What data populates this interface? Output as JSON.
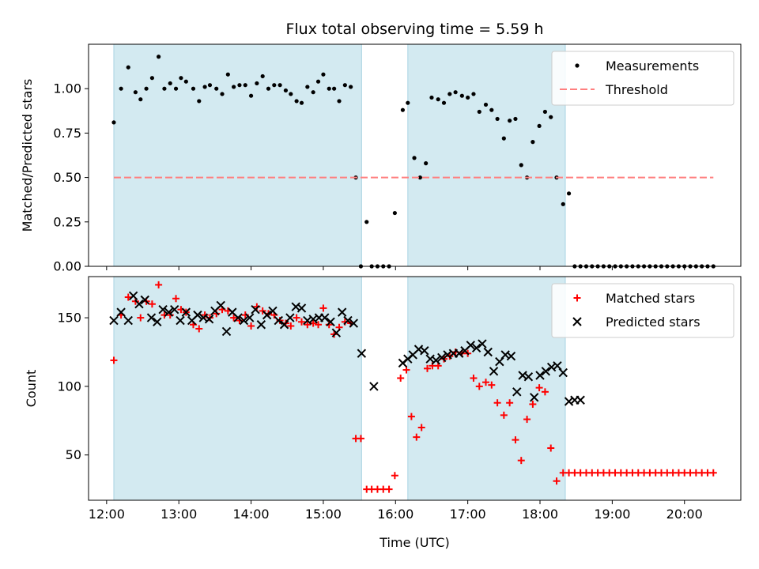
{
  "chart_data": [
    {
      "type": "scatter",
      "title": "Flux total observing time = 5.59 h",
      "xlabel": "",
      "ylabel": "Matched/Predicted stars",
      "x_unit": "hours (UTC)",
      "xlim": [
        11.75,
        20.78
      ],
      "ylim": [
        0,
        1.25
      ],
      "yticks": [
        0.0,
        0.25,
        0.5,
        0.75,
        1.0
      ],
      "ytick_labels": [
        "0.00",
        "0.25",
        "0.50",
        "0.75",
        "1.00"
      ],
      "shaded_intervals": [
        [
          12.1,
          15.53
        ],
        [
          16.17,
          18.35
        ]
      ],
      "shade_color": "#d3eaf1",
      "legend_position": "upper right",
      "series": [
        {
          "name": "Measurements",
          "marker": "dot",
          "color": "#000000",
          "x": [
            12.1,
            12.2,
            12.3,
            12.4,
            12.47,
            12.55,
            12.63,
            12.72,
            12.8,
            12.88,
            12.96,
            13.03,
            13.1,
            13.2,
            13.28,
            13.36,
            13.43,
            13.52,
            13.6,
            13.68,
            13.76,
            13.84,
            13.92,
            14.0,
            14.08,
            14.16,
            14.24,
            14.32,
            14.4,
            14.48,
            14.55,
            14.63,
            14.7,
            14.78,
            14.86,
            14.93,
            15.0,
            15.08,
            15.15,
            15.22,
            15.3,
            15.38,
            15.45,
            15.52,
            15.6,
            15.67,
            15.75,
            15.83,
            15.91,
            15.99,
            16.1,
            16.17,
            16.26,
            16.34,
            16.42,
            16.5,
            16.59,
            16.67,
            16.75,
            16.83,
            16.92,
            17.0,
            17.08,
            17.16,
            17.25,
            17.33,
            17.41,
            17.5,
            17.58,
            17.66,
            17.74,
            17.82,
            17.9,
            17.99,
            18.07,
            18.15,
            18.23,
            18.32,
            18.4,
            18.48,
            18.56,
            18.64,
            18.72,
            18.8,
            18.88,
            18.96,
            19.04,
            19.12,
            19.2,
            19.28,
            19.36,
            19.44,
            19.52,
            19.6,
            19.68,
            19.76,
            19.84,
            19.92,
            20.0,
            20.08,
            20.16,
            20.24,
            20.32,
            20.4
          ],
          "y": [
            0.81,
            1.0,
            1.12,
            0.98,
            0.94,
            1.0,
            1.06,
            1.18,
            1.0,
            1.03,
            1.0,
            1.06,
            1.04,
            1.0,
            0.93,
            1.01,
            1.02,
            1.0,
            0.97,
            1.08,
            1.01,
            1.02,
            1.02,
            0.96,
            1.03,
            1.07,
            1.0,
            1.02,
            1.02,
            0.99,
            0.97,
            0.93,
            0.92,
            1.01,
            0.98,
            1.04,
            1.08,
            1.0,
            1.0,
            0.93,
            1.02,
            1.01,
            0.5,
            0.0,
            0.25,
            0.0,
            0.0,
            0.0,
            0.0,
            0.3,
            0.88,
            0.92,
            0.61,
            0.5,
            0.58,
            0.95,
            0.94,
            0.92,
            0.97,
            0.98,
            0.96,
            0.95,
            0.97,
            0.87,
            0.91,
            0.88,
            0.83,
            0.72,
            0.82,
            0.83,
            0.57,
            0.5,
            0.7,
            0.79,
            0.87,
            0.84,
            0.5,
            0.35,
            0.41,
            0.0,
            0.0,
            0.0,
            0.0,
            0.0,
            0.0,
            0.0,
            0.0,
            0.0,
            0.0,
            0.0,
            0.0,
            0.0,
            0.0,
            0.0,
            0.0,
            0.0,
            0.0,
            0.0,
            0.0,
            0.0,
            0.0,
            0.0,
            0.0,
            0.0
          ]
        },
        {
          "name": "Threshold",
          "type": "line",
          "style": "dashed",
          "color": "#ff7f7f",
          "x": [
            12.1,
            20.4
          ],
          "y": [
            0.5,
            0.5
          ]
        }
      ]
    },
    {
      "type": "scatter",
      "title": "",
      "xlabel": "Time (UTC)",
      "ylabel": "Count",
      "x_unit": "hours (UTC)",
      "xlim": [
        11.75,
        20.78
      ],
      "ylim": [
        17,
        180
      ],
      "xticks": [
        12,
        13,
        14,
        15,
        16,
        17,
        18,
        19,
        20
      ],
      "xtick_labels": [
        "12:00",
        "13:00",
        "14:00",
        "15:00",
        "16:00",
        "17:00",
        "18:00",
        "19:00",
        "20:00"
      ],
      "yticks": [
        50,
        100,
        150
      ],
      "ytick_labels": [
        "50",
        "100",
        "150"
      ],
      "shaded_intervals": [
        [
          12.1,
          15.53
        ],
        [
          16.17,
          18.35
        ]
      ],
      "shade_color": "#d3eaf1",
      "legend_position": "upper right",
      "series": [
        {
          "name": "Matched stars",
          "marker": "plus",
          "color": "#ff0000",
          "x": [
            12.1,
            12.2,
            12.3,
            12.4,
            12.47,
            12.55,
            12.63,
            12.72,
            12.8,
            12.88,
            12.96,
            13.03,
            13.1,
            13.2,
            13.28,
            13.36,
            13.43,
            13.52,
            13.6,
            13.68,
            13.76,
            13.84,
            13.92,
            14.0,
            14.08,
            14.16,
            14.24,
            14.32,
            14.4,
            14.48,
            14.55,
            14.63,
            14.7,
            14.78,
            14.86,
            14.93,
            15.0,
            15.08,
            15.15,
            15.22,
            15.3,
            15.38,
            15.45,
            15.52,
            15.6,
            15.67,
            15.75,
            15.83,
            15.91,
            15.99,
            16.07,
            16.15,
            16.22,
            16.29,
            16.36,
            16.44,
            16.51,
            16.59,
            16.67,
            16.75,
            16.83,
            16.92,
            17.0,
            17.08,
            17.16,
            17.25,
            17.33,
            17.41,
            17.5,
            17.58,
            17.66,
            17.74,
            17.82,
            17.9,
            17.99,
            18.07,
            18.15,
            18.23,
            18.32,
            18.4,
            18.48,
            18.56,
            18.64,
            18.72,
            18.8,
            18.88,
            18.96,
            19.04,
            19.12,
            19.2,
            19.28,
            19.36,
            19.44,
            19.52,
            19.6,
            19.68,
            19.76,
            19.84,
            19.92,
            20.0,
            20.08,
            20.16,
            20.24,
            20.32,
            20.4
          ],
          "y": [
            119,
            152,
            165,
            162,
            150,
            162,
            160,
            174,
            152,
            152,
            164,
            156,
            154,
            145,
            142,
            152,
            150,
            153,
            156,
            155,
            150,
            148,
            152,
            144,
            158,
            155,
            153,
            152,
            148,
            146,
            144,
            150,
            147,
            145,
            146,
            145,
            157,
            145,
            138,
            143,
            147,
            146,
            62,
            62,
            25,
            25,
            25,
            25,
            25,
            35,
            106,
            112,
            78,
            63,
            70,
            113,
            115,
            115,
            120,
            122,
            125,
            124,
            124,
            106,
            100,
            103,
            101,
            88,
            79,
            88,
            61,
            46,
            76,
            87,
            99,
            96,
            55,
            31,
            37,
            37,
            37,
            37,
            37,
            37,
            37,
            37,
            37,
            37,
            37,
            37,
            37,
            37,
            37,
            37,
            37,
            37,
            37,
            37,
            37,
            37,
            37,
            37,
            37,
            37,
            37
          ],
          "x_note": ""
        },
        {
          "name": "Predicted stars",
          "marker": "x",
          "color": "#000000",
          "x": [
            12.1,
            12.2,
            12.3,
            12.37,
            12.45,
            12.53,
            12.62,
            12.7,
            12.78,
            12.86,
            12.94,
            13.02,
            13.1,
            13.18,
            13.26,
            13.34,
            13.42,
            13.5,
            13.58,
            13.66,
            13.74,
            13.82,
            13.9,
            13.98,
            14.06,
            14.14,
            14.22,
            14.3,
            14.38,
            14.46,
            14.54,
            14.62,
            14.7,
            14.78,
            14.86,
            14.94,
            15.02,
            15.1,
            15.18,
            15.26,
            15.34,
            15.42,
            15.53,
            15.7,
            16.1,
            16.17,
            16.24,
            16.32,
            16.4,
            16.48,
            16.56,
            16.64,
            16.72,
            16.8,
            16.88,
            16.96,
            17.04,
            17.12,
            17.2,
            17.28,
            17.36,
            17.44,
            17.52,
            17.6,
            17.68,
            17.76,
            17.84,
            17.92,
            18.0,
            18.08,
            18.16,
            18.24,
            18.32,
            18.4,
            18.48,
            18.56
          ],
          "y": [
            148,
            154,
            148,
            166,
            160,
            163,
            150,
            147,
            156,
            154,
            156,
            148,
            154,
            148,
            152,
            150,
            149,
            155,
            159,
            140,
            154,
            150,
            148,
            150,
            156,
            145,
            152,
            155,
            148,
            145,
            150,
            158,
            157,
            148,
            149,
            150,
            150,
            147,
            139,
            154,
            148,
            146,
            124,
            100,
            117,
            120,
            123,
            127,
            126,
            120,
            119,
            121,
            123,
            124,
            124,
            126,
            130,
            128,
            131,
            125,
            111,
            118,
            123,
            122,
            96,
            108,
            107,
            92,
            108,
            111,
            114,
            115,
            110,
            89,
            90,
            90
          ]
        }
      ]
    }
  ]
}
